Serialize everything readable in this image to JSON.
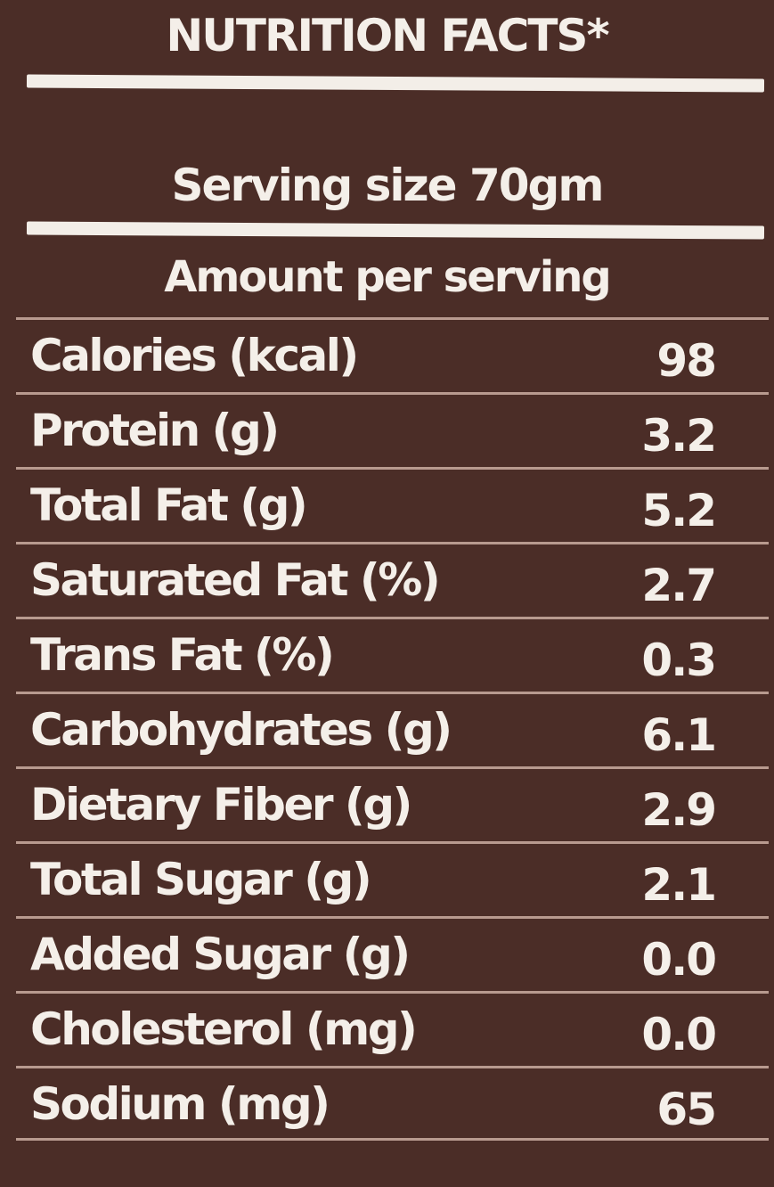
{
  "label": {
    "title": "NUTRITION FACTS*",
    "serving_size": "Serving size 70gm",
    "amount_per_serving": "Amount per serving",
    "nutrients": [
      {
        "name": "Calories (kcal)",
        "value": "98"
      },
      {
        "name": "Protein (g)",
        "value": "3.2"
      },
      {
        "name": "Total Fat (g)",
        "value": "5.2"
      },
      {
        "name": "Saturated Fat (%)",
        "value": "2.7"
      },
      {
        "name": "Trans Fat (%)",
        "value": "0.3"
      },
      {
        "name": "Carbohydrates (g)",
        "value": "6.1"
      },
      {
        "name": "Dietary Fiber (g)",
        "value": "2.9"
      },
      {
        "name": "Total Sugar (g)",
        "value": "2.1"
      },
      {
        "name": "Added Sugar (g)",
        "value": "0.0"
      },
      {
        "name": "Cholesterol (mg)",
        "value": "0.0"
      },
      {
        "name": "Sodium (mg)",
        "value": "65"
      }
    ]
  },
  "colors": {
    "background": "#4b2d27",
    "text": "#f4efe9",
    "rule": "#f3eee8",
    "row_line": "#b89a8f"
  }
}
